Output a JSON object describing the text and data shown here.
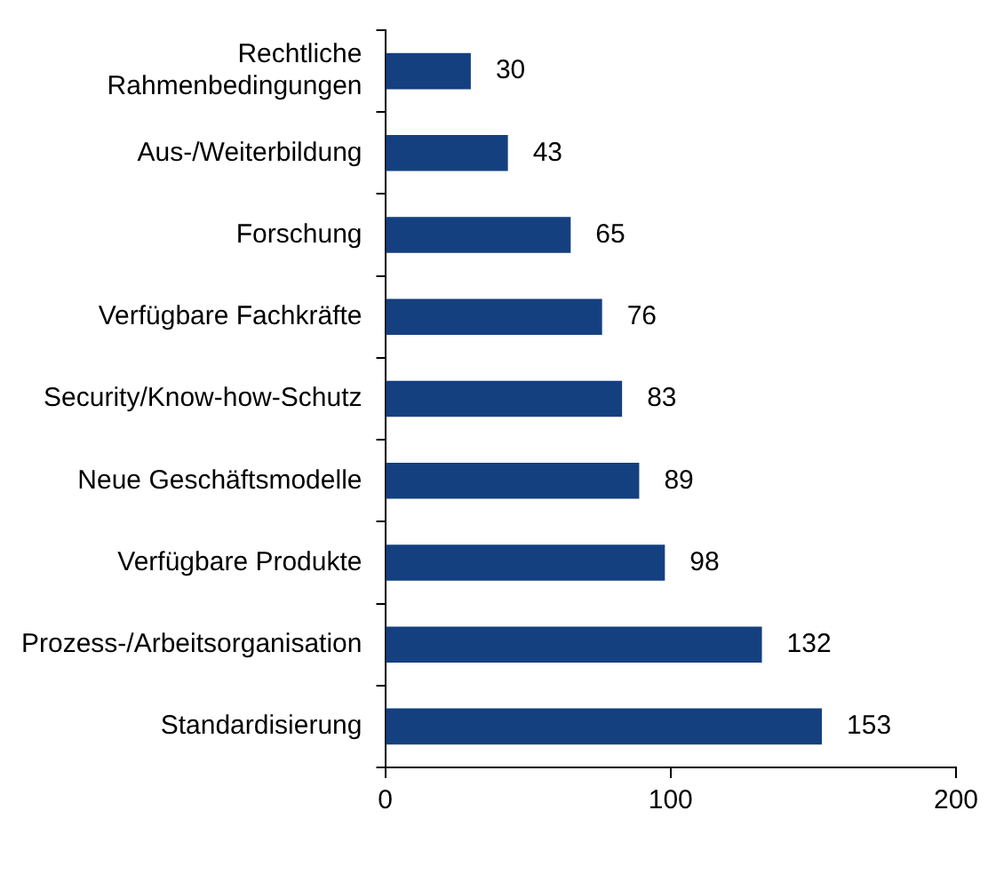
{
  "chart_data": {
    "type": "bar",
    "orientation": "horizontal",
    "categories": [
      "Rechtliche Rahmenbedingungen",
      "Aus-/Weiterbildung",
      "Forschung",
      "Verfügbare Fachkräfte",
      "Security/Know-how-Schutz",
      "Neue Geschäftsmodelle",
      "Verfügbare Produkte",
      "Prozess-/Arbeitsorganisation",
      "Standardisierung"
    ],
    "values": [
      30,
      43,
      65,
      76,
      83,
      89,
      98,
      132,
      153
    ],
    "color": "#14407f",
    "xlim": [
      0,
      200
    ],
    "xticks": [
      0,
      100,
      200
    ],
    "grid": false,
    "legend": false,
    "data_labels": true
  }
}
